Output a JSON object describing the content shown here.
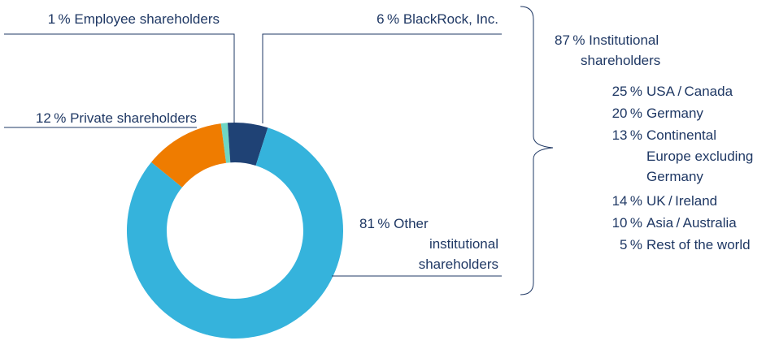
{
  "chart_data": {
    "type": "pie",
    "donut": true,
    "title": "",
    "slices": [
      {
        "label": "Employee shareholders",
        "display": "1 % Employee shareholders",
        "value": 1,
        "color": "#6fd6c4"
      },
      {
        "label": "BlackRock, Inc.",
        "display": "6 % BlackRock, Inc.",
        "value": 6,
        "color": "#1f4275"
      },
      {
        "label": "Other institutional shareholders",
        "display_lines": [
          "81 % Other",
          "institutional",
          "shareholders"
        ],
        "value": 81,
        "color": "#35b3dc"
      },
      {
        "label": "Private shareholders",
        "display": "12 % Private shareholders",
        "value": 12,
        "color": "#ef7c00"
      }
    ],
    "institutional": {
      "value": 87,
      "display_lines": [
        "87 % Institutional",
        "shareholders"
      ],
      "breakdown": [
        {
          "pct": "25 %",
          "lines": [
            "USA / Canada"
          ],
          "value": 25
        },
        {
          "pct": "20 %",
          "lines": [
            "Germany"
          ],
          "value": 20
        },
        {
          "pct": "13 %",
          "lines": [
            "Continental",
            "Europe excluding",
            "Germany"
          ],
          "value": 13
        },
        {
          "pct": "14 %",
          "lines": [
            "UK / Ireland"
          ],
          "value": 14
        },
        {
          "pct": "10 %",
          "lines": [
            "Asia / Australia"
          ],
          "value": 10
        },
        {
          "pct": "5 %",
          "lines": [
            "Rest of the world"
          ],
          "value": 5
        }
      ]
    },
    "legend": "none"
  }
}
